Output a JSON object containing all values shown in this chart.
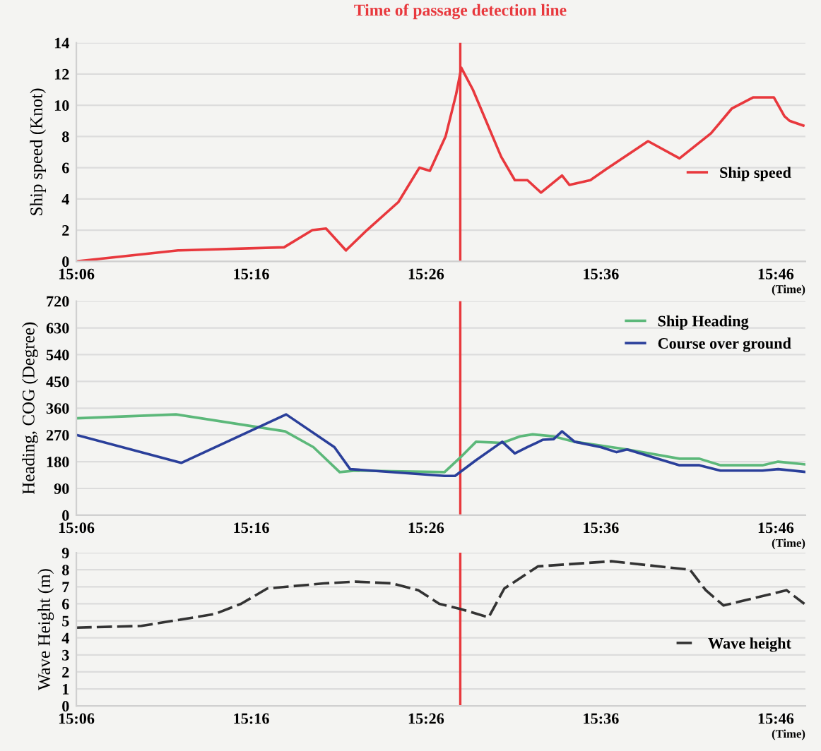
{
  "chart_data": [
    {
      "type": "line",
      "ylabel": "Ship speed (Knot)",
      "xlabel": "(Time)",
      "series": [
        {
          "name": "Ship speed",
          "color": "#e8383d",
          "x": [
            15.1,
            15.197,
            15.298,
            15.325,
            15.338,
            15.357,
            15.377,
            15.407,
            15.427,
            15.437,
            15.452,
            15.462,
            15.467,
            15.478,
            15.505,
            15.518,
            15.53,
            15.543,
            15.563,
            15.57,
            15.59,
            15.605,
            15.645,
            15.675,
            15.705,
            15.725,
            15.745,
            15.765,
            15.775,
            15.78,
            15.793
          ],
          "values": [
            0,
            0.7,
            0.9,
            2.0,
            2.1,
            0.7,
            2.0,
            3.8,
            6.0,
            5.8,
            8.0,
            10.7,
            12.4,
            11.0,
            6.7,
            5.2,
            5.2,
            4.4,
            5.5,
            4.9,
            5.2,
            5.9,
            7.7,
            6.6,
            8.2,
            9.8,
            10.5,
            10.5,
            9.3,
            9.0,
            8.7
          ]
        }
      ],
      "xlim": [
        15.1,
        15.795
      ],
      "xticks": [
        {
          "value": 15.1,
          "label": "15:06"
        },
        {
          "value": 15.2667,
          "label": "15:16"
        },
        {
          "value": 15.4333,
          "label": "15:26"
        },
        {
          "value": 15.6,
          "label": "15:36"
        },
        {
          "value": 15.7667,
          "label": "15:46"
        }
      ],
      "ylim": [
        0,
        14
      ],
      "yticks": [
        0,
        2,
        4,
        6,
        8,
        10,
        12,
        14
      ],
      "ref_lines": [
        {
          "axis": "x",
          "value": 15.466,
          "label": "Time of passage detection line",
          "color": "#e8383d"
        }
      ],
      "grid": "y",
      "legend": "right",
      "line_style": "solid",
      "marker": "none"
    },
    {
      "type": "line",
      "ylabel": "Heading, COG (Degree)",
      "xlabel": "(Time)",
      "series": [
        {
          "name": "Ship Heading",
          "color": "#5cb87a",
          "x": [
            15.1,
            15.195,
            15.299,
            15.326,
            15.351,
            15.366,
            15.451,
            15.466,
            15.481,
            15.506,
            15.523,
            15.535,
            15.555,
            15.575,
            15.625,
            15.675,
            15.694,
            15.714,
            15.754,
            15.769,
            15.794
          ],
          "values": [
            326,
            339,
            282,
            229,
            145,
            150,
            145,
            194,
            247,
            243,
            265,
            272,
            265,
            247,
            221,
            190,
            190,
            168,
            168,
            180,
            171
          ]
        },
        {
          "name": "Course over ground",
          "color": "#2a3f9a",
          "x": [
            15.1,
            15.2,
            15.3,
            15.346,
            15.361,
            15.451,
            15.461,
            15.481,
            15.506,
            15.518,
            15.53,
            15.545,
            15.555,
            15.563,
            15.575,
            15.6,
            15.615,
            15.625,
            15.675,
            15.694,
            15.714,
            15.754,
            15.769,
            15.794
          ],
          "values": [
            270,
            176,
            339,
            229,
            155,
            132,
            132,
            185,
            247,
            208,
            229,
            254,
            256,
            282,
            247,
            229,
            212,
            221,
            168,
            168,
            150,
            150,
            155,
            146
          ]
        }
      ],
      "xlim": [
        15.1,
        15.795
      ],
      "xticks": [
        {
          "value": 15.1,
          "label": "15:06"
        },
        {
          "value": 15.2667,
          "label": "15:16"
        },
        {
          "value": 15.4333,
          "label": "15:26"
        },
        {
          "value": 15.6,
          "label": "15:36"
        },
        {
          "value": 15.7667,
          "label": "15:46"
        }
      ],
      "ylim": [
        0,
        720
      ],
      "yticks": [
        0,
        90,
        180,
        270,
        360,
        450,
        540,
        630,
        720
      ],
      "ref_lines": [
        {
          "axis": "x",
          "value": 15.466,
          "color": "#e8383d"
        }
      ],
      "grid": "y",
      "legend": "upper right",
      "line_style": "solid",
      "marker": "none"
    },
    {
      "type": "line",
      "ylabel": "Wave Height (m)",
      "xlabel": "(Time)",
      "series": [
        {
          "name": "Wave height",
          "color": "#333333",
          "x": [
            15.1,
            15.162,
            15.232,
            15.257,
            15.282,
            15.336,
            15.366,
            15.401,
            15.426,
            15.446,
            15.466,
            15.493,
            15.508,
            15.54,
            15.61,
            15.685,
            15.7,
            15.717,
            15.777,
            15.794
          ],
          "values": [
            4.6,
            4.7,
            5.4,
            6.0,
            6.9,
            7.2,
            7.3,
            7.2,
            6.8,
            6.0,
            5.7,
            5.2,
            6.9,
            8.2,
            8.5,
            8.0,
            6.8,
            5.9,
            6.8,
            6.0
          ]
        }
      ],
      "xlim": [
        15.1,
        15.795
      ],
      "xticks": [
        {
          "value": 15.1,
          "label": "15:06"
        },
        {
          "value": 15.2667,
          "label": "15:16"
        },
        {
          "value": 15.4333,
          "label": "15:26"
        },
        {
          "value": 15.6,
          "label": "15:36"
        },
        {
          "value": 15.7667,
          "label": "15:46"
        }
      ],
      "ylim": [
        0,
        9
      ],
      "yticks": [
        0,
        1,
        2,
        3,
        4,
        5,
        6,
        7,
        8,
        9
      ],
      "ref_lines": [
        {
          "axis": "x",
          "value": 15.466,
          "color": "#e8383d"
        }
      ],
      "grid": "y",
      "legend": "right",
      "line_style": "dashed",
      "marker": "none"
    }
  ]
}
